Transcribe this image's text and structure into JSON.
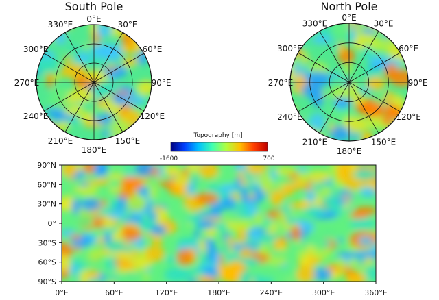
{
  "south_pole": {
    "title": "South Pole",
    "lon_labels": [
      "0°E",
      "30°E",
      "60°E",
      "90°E",
      "120°E",
      "150°E",
      "180°E",
      "210°E",
      "240°E",
      "270°E",
      "300°E",
      "330°E"
    ]
  },
  "north_pole": {
    "title": "North Pole",
    "lon_labels": [
      "0°E",
      "30°E",
      "60°E",
      "90°E",
      "120°E",
      "150°E",
      "180°E",
      "210°E",
      "240°E",
      "270°E",
      "300°E",
      "330°E"
    ]
  },
  "colorbar": {
    "label": "Topography [m]",
    "min_label": "-1600",
    "max_label": "700",
    "colors": [
      "#00007f",
      "#0040ff",
      "#00c0ff",
      "#40ffb0",
      "#b0ff40",
      "#ffc000",
      "#ff4000",
      "#c00000"
    ]
  },
  "map": {
    "lat_labels": [
      "90°N",
      "60°N",
      "30°N",
      "0°",
      "30°S",
      "60°S",
      "90°S"
    ],
    "lon_labels": [
      "0°E",
      "60°E",
      "120°E",
      "180°E",
      "240°E",
      "300°E",
      "360°E"
    ]
  },
  "chart_data": {
    "type": "heatmap",
    "title": "Topography [m]",
    "value_range": [
      -1600,
      700
    ],
    "xlim": [
      0,
      360
    ],
    "ylim": [
      -90,
      90
    ]
  }
}
